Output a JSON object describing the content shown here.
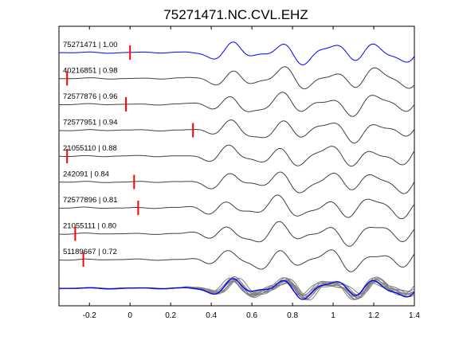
{
  "chart_data": {
    "type": "line",
    "title": "75271471.NC.CVL.EHZ",
    "xlabel": "",
    "ylabel": "",
    "xlim": [
      -0.35,
      1.4
    ],
    "xticks": [
      -0.2,
      0,
      0.2,
      0.4,
      0.6,
      0.8,
      1,
      1.2,
      1.4
    ],
    "xtick_labels": [
      "-0.2",
      "0",
      "0.2",
      "0.4",
      "0.6",
      "0.8",
      "1",
      "1.2",
      "1.4"
    ],
    "grid": false,
    "legend": "none",
    "colors": {
      "reference": "#0000ff",
      "trace": "#404040",
      "pick": "#ff0000",
      "stack": "#808080"
    },
    "traces": [
      {
        "label": "75271471 | 1.00",
        "pick_time": 0.0,
        "color": "reference"
      },
      {
        "label": "40216851 | 0.98",
        "pick_time": -0.31,
        "color": "trace"
      },
      {
        "label": "72577876 | 0.96",
        "pick_time": -0.02,
        "color": "trace"
      },
      {
        "label": "72577951 | 0.94",
        "pick_time": 0.31,
        "color": "trace"
      },
      {
        "label": "21055110 | 0.88",
        "pick_time": -0.31,
        "color": "trace"
      },
      {
        "label": "242091 | 0.84",
        "pick_time": 0.02,
        "color": "trace"
      },
      {
        "label": "72577896 | 0.81",
        "pick_time": 0.04,
        "color": "trace"
      },
      {
        "label": "21055111 | 0.80",
        "pick_time": -0.27,
        "color": "trace"
      },
      {
        "label": "51189667 | 0.72",
        "pick_time": -0.23,
        "color": "trace"
      }
    ],
    "stack": {
      "count": 9,
      "reference_color": "reference",
      "trace_color": "stack"
    }
  }
}
